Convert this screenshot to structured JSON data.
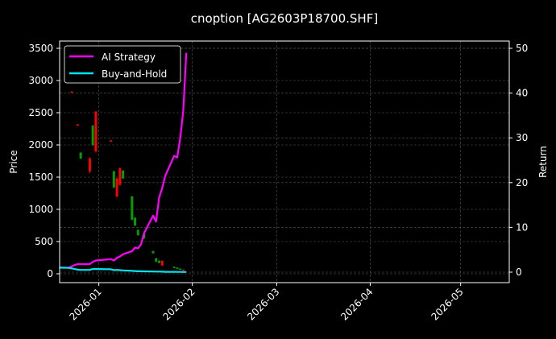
{
  "chart_data": {
    "type": "line",
    "title": "cnoption [AG2603P18700.SHF]",
    "xlabel": "",
    "ylabel": "Price",
    "ylabel_right": "Return",
    "x_ticks": [
      "2026-01",
      "2026-02",
      "2026-03",
      "2026-04",
      "2026-05"
    ],
    "y_ticks_left": [
      0,
      500,
      1000,
      1500,
      2000,
      2500,
      3000,
      3500
    ],
    "y_ticks_right": [
      0,
      10,
      20,
      30,
      40,
      50
    ],
    "ylim_left": [
      -150,
      3600
    ],
    "ylim_right": [
      -1.5,
      51.5
    ],
    "xlim": [
      "2025-12-19",
      "2026-05-20"
    ],
    "grid": true,
    "legend_position": "upper left",
    "legend": [
      "AI Strategy",
      "Buy-and-Hold"
    ],
    "colors": {
      "background": "#000000",
      "ai_strategy": "#ff00ff",
      "buy_and_hold": "#00e5ee",
      "candle_up": "#00a000",
      "candle_down": "#ff0000",
      "grid": "#555555",
      "axes": "#ffffff"
    },
    "series": [
      {
        "name": "AI Strategy",
        "axis": "right",
        "x": [
          "2025-12-19",
          "2025-12-22",
          "2025-12-23",
          "2025-12-24",
          "2025-12-25",
          "2025-12-26",
          "2025-12-29",
          "2025-12-30",
          "2025-12-31",
          "2026-01-05",
          "2026-01-06",
          "2026-01-07",
          "2026-01-08",
          "2026-01-09",
          "2026-01-12",
          "2026-01-13",
          "2026-01-14",
          "2026-01-15",
          "2026-01-16",
          "2026-01-19",
          "2026-01-20",
          "2026-01-21",
          "2026-01-22",
          "2026-01-23",
          "2026-01-26",
          "2026-01-27",
          "2026-01-28",
          "2026-01-29",
          "2026-01-30"
        ],
        "values": [
          1.0,
          1.0,
          1.3,
          1.6,
          1.8,
          1.8,
          1.8,
          2.3,
          2.6,
          2.9,
          2.6,
          3.2,
          3.5,
          4.0,
          4.7,
          5.5,
          5.3,
          6.2,
          8.7,
          12.6,
          11.3,
          16.7,
          18.7,
          21.5,
          26.0,
          25.6,
          30.0,
          36.0,
          49.0
        ]
      },
      {
        "name": "Buy-and-Hold",
        "axis": "right",
        "x": [
          "2025-12-19",
          "2025-12-22",
          "2025-12-23",
          "2025-12-24",
          "2025-12-25",
          "2025-12-26",
          "2025-12-29",
          "2025-12-30",
          "2025-12-31",
          "2026-01-05",
          "2026-01-06",
          "2026-01-07",
          "2026-01-08",
          "2026-01-09",
          "2026-01-12",
          "2026-01-13",
          "2026-01-14",
          "2026-01-15",
          "2026-01-16",
          "2026-01-19",
          "2026-01-20",
          "2026-01-21",
          "2026-01-22",
          "2026-01-23",
          "2026-01-26",
          "2026-01-27",
          "2026-01-28",
          "2026-01-29",
          "2026-01-30"
        ],
        "values": [
          1.0,
          0.95,
          0.85,
          0.7,
          0.55,
          0.5,
          0.5,
          0.7,
          0.7,
          0.65,
          0.45,
          0.5,
          0.45,
          0.4,
          0.3,
          0.25,
          0.2,
          0.2,
          0.18,
          0.15,
          0.12,
          0.12,
          0.1,
          0.08,
          0.07,
          0.06,
          0.05,
          0.04,
          0.03
        ]
      }
    ],
    "candles": [
      {
        "x": "2025-12-23",
        "open": 2830,
        "close": 2810,
        "high": 2830,
        "low": 2810
      },
      {
        "x": "2025-12-25",
        "open": 2320,
        "close": 2300,
        "high": 2320,
        "low": 2300
      },
      {
        "x": "2025-12-26",
        "open": 1790,
        "close": 1880,
        "high": 1890,
        "low": 1780
      },
      {
        "x": "2025-12-29",
        "open": 1790,
        "close": 1590,
        "high": 1810,
        "low": 1560
      },
      {
        "x": "2025-12-30",
        "open": 2000,
        "close": 2300,
        "high": 2310,
        "low": 1980
      },
      {
        "x": "2025-12-31",
        "open": 2520,
        "close": 1900,
        "high": 2520,
        "low": 1880
      },
      {
        "x": "2026-01-05",
        "open": 2070,
        "close": 2060,
        "high": 2080,
        "low": 2060
      },
      {
        "x": "2026-01-06",
        "open": 1340,
        "close": 1590,
        "high": 1600,
        "low": 1330
      },
      {
        "x": "2026-01-07",
        "open": 1480,
        "close": 1200,
        "high": 1490,
        "low": 1190
      },
      {
        "x": "2026-01-08",
        "open": 1640,
        "close": 1380,
        "high": 1650,
        "low": 1370
      },
      {
        "x": "2026-01-09",
        "open": 1480,
        "close": 1600,
        "high": 1610,
        "low": 1470
      },
      {
        "x": "2026-01-12",
        "open": 840,
        "close": 1200,
        "high": 1210,
        "low": 830
      },
      {
        "x": "2026-01-13",
        "open": 750,
        "close": 870,
        "high": 880,
        "low": 740
      },
      {
        "x": "2026-01-14",
        "open": 600,
        "close": 680,
        "high": 690,
        "low": 590
      },
      {
        "x": "2026-01-16",
        "open": 550,
        "close": 620,
        "high": 630,
        "low": 540
      },
      {
        "x": "2026-01-19",
        "open": 320,
        "close": 350,
        "high": 360,
        "low": 310
      },
      {
        "x": "2026-01-20",
        "open": 190,
        "close": 240,
        "high": 250,
        "low": 180
      },
      {
        "x": "2026-01-21",
        "open": 170,
        "close": 200,
        "high": 210,
        "low": 160
      },
      {
        "x": "2026-01-22",
        "open": 200,
        "close": 130,
        "high": 210,
        "low": 120
      },
      {
        "x": "2026-01-26",
        "open": 90,
        "close": 110,
        "high": 115,
        "low": 85
      },
      {
        "x": "2026-01-27",
        "open": 80,
        "close": 95,
        "high": 100,
        "low": 75
      },
      {
        "x": "2026-01-28",
        "open": 70,
        "close": 80,
        "high": 85,
        "low": 65
      },
      {
        "x": "2026-01-29",
        "open": 65,
        "close": 55,
        "high": 70,
        "low": 50
      }
    ]
  }
}
